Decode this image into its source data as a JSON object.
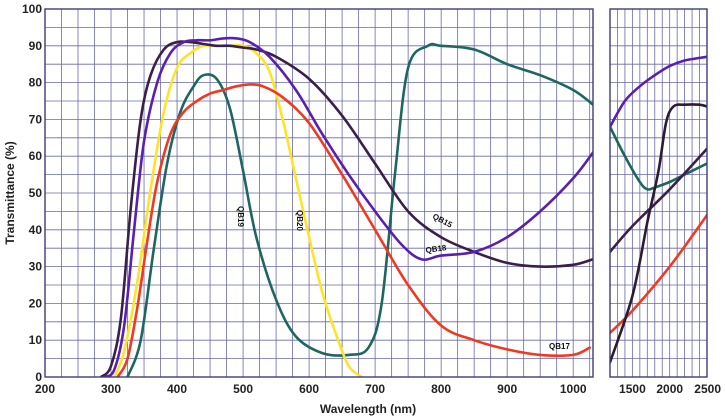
{
  "chart_data": {
    "type": "line",
    "xlabel": "Wavelength (nm)",
    "ylabel": "Transmittance (%)",
    "ylim": [
      0,
      100
    ],
    "y_ticks": [
      "0",
      "10",
      "20",
      "30",
      "40",
      "50",
      "60",
      "70",
      "80",
      "90",
      "100"
    ],
    "grid": true,
    "panels": [
      {
        "name": "main",
        "xlim": [
          200,
          1030
        ],
        "x_ticks": [
          "200",
          "300",
          "400",
          "500",
          "600",
          "700",
          "800",
          "900",
          "1000"
        ],
        "x_tick_values": [
          200,
          300,
          400,
          500,
          600,
          700,
          800,
          900,
          1000
        ]
      },
      {
        "name": "extended",
        "xlim": [
          1200,
          2500
        ],
        "x_ticks": [
          "1500",
          "2000",
          "2500"
        ],
        "x_tick_values": [
          1500,
          2000,
          2500
        ]
      }
    ],
    "series": [
      {
        "name": "QB15",
        "color": "#3a1f4a",
        "x": [
          285,
          300,
          315,
          330,
          345,
          360,
          380,
          400,
          420,
          440,
          460,
          480,
          500,
          520,
          550,
          600,
          650,
          700,
          750,
          800,
          850,
          900,
          950,
          1000,
          1030
        ],
        "y": [
          0,
          3,
          16,
          46,
          70,
          82,
          89,
          91,
          91,
          90.5,
          90,
          90,
          89.5,
          89,
          87,
          81,
          71,
          58,
          45,
          38,
          34,
          31,
          30,
          30.5,
          32
        ],
        "x2": [
          1200,
          1500,
          2000,
          2500
        ],
        "y2": [
          34,
          41,
          51,
          62
        ]
      },
      {
        "name": "QB18",
        "color": "#5a1fb0",
        "x": [
          290,
          305,
          320,
          335,
          350,
          370,
          390,
          410,
          430,
          450,
          470,
          490,
          510,
          540,
          580,
          620,
          660,
          700,
          740,
          770,
          800,
          850,
          900,
          950,
          1000,
          1030
        ],
        "y": [
          0,
          2,
          14,
          40,
          64,
          80,
          88,
          91,
          91.5,
          91.5,
          92,
          92,
          91,
          87,
          78,
          66,
          55,
          45,
          36,
          32,
          33,
          34,
          38,
          45,
          54,
          61
        ],
        "x2": [
          1200,
          1400,
          1600,
          1800,
          2000,
          2200,
          2500
        ],
        "y2": [
          68,
          75,
          79,
          82,
          84.5,
          86,
          87
        ]
      },
      {
        "name": "QB17",
        "color": "#ef3a22",
        "x": [
          310,
          325,
          340,
          355,
          370,
          390,
          410,
          430,
          450,
          470,
          490,
          510,
          530,
          560,
          600,
          650,
          700,
          750,
          800,
          850,
          900,
          950,
          1000,
          1025
        ],
        "y": [
          0,
          5,
          19,
          37,
          53,
          66,
          72,
          75,
          77,
          78,
          79,
          79.5,
          79,
          76,
          69,
          55,
          40,
          25,
          14,
          10,
          7.5,
          6,
          6,
          8
        ],
        "x2": [
          1200,
          1500,
          2000,
          2500
        ],
        "y2": [
          12,
          18,
          30,
          44
        ]
      },
      {
        "name": "QB19",
        "color": "#1f6660",
        "x": [
          325,
          345,
          365,
          385,
          405,
          425,
          440,
          460,
          480,
          500,
          520,
          550,
          580,
          620,
          660,
          690,
          710,
          730,
          750,
          780,
          800,
          850,
          900,
          950,
          1000,
          1030
        ],
        "y": [
          0,
          10,
          35,
          58,
          72,
          79,
          82,
          81,
          73,
          56,
          38,
          21,
          11,
          6.5,
          6,
          8,
          20,
          55,
          84,
          90,
          90,
          89,
          85,
          82,
          78,
          74
        ],
        "x2": [
          1200,
          1400,
          1600,
          1700,
          1800,
          2000,
          2200,
          2500
        ],
        "y2": [
          68,
          60,
          53,
          51,
          51.5,
          53,
          55,
          58
        ]
      },
      {
        "name": "QB20",
        "color": "#fde32a",
        "x": [
          305,
          320,
          340,
          360,
          380,
          400,
          420,
          440,
          460,
          480,
          500,
          520,
          540,
          560,
          580,
          600,
          620,
          640,
          660,
          680
        ],
        "y": [
          0,
          7,
          26,
          51,
          72,
          84,
          88,
          90,
          90,
          90,
          90,
          88,
          83,
          70,
          54,
          38,
          23,
          12,
          3,
          0
        ],
        "x2": [],
        "y2": []
      },
      {
        "name": "",
        "color": "#2e1b33",
        "x": [],
        "y": [],
        "x2": [
          1200,
          1500,
          1700,
          1850,
          1950,
          2050,
          2200,
          2400,
          2500
        ],
        "y2": [
          4,
          22,
          42,
          56,
          69,
          73.5,
          74,
          74,
          73.5
        ]
      }
    ],
    "annotations": [
      {
        "text": "QB15",
        "series": "QB15"
      },
      {
        "text": "QB18",
        "series": "QB18"
      },
      {
        "text": "QB17",
        "series": "QB17"
      },
      {
        "text": "QB19",
        "series": "QB19"
      },
      {
        "text": "QB20",
        "series": "QB20"
      }
    ]
  }
}
